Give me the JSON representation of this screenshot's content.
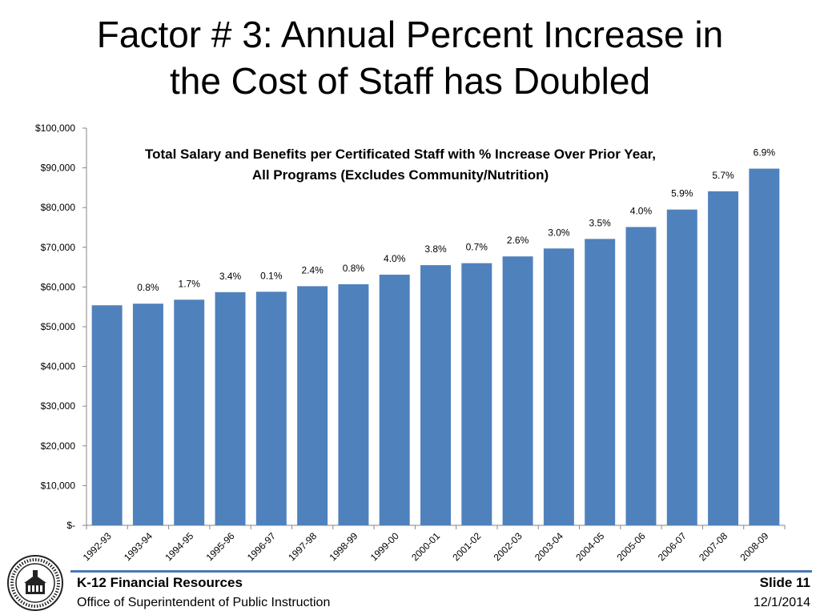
{
  "slide": {
    "title_line1": "Factor # 3:  Annual Percent Increase in",
    "title_line2": "the Cost of Staff has Doubled"
  },
  "footer": {
    "org_title": "K-12 Financial Resources",
    "org_name": "Office of Superintendent of Public Instruction",
    "slide_label": "Slide 11",
    "date": "12/1/2014",
    "seal_text": "SUPERINTENDENT OF PUBLIC INSTRUCTION · WASHINGTON"
  },
  "colors": {
    "bar": "#4f81bd",
    "axis": "#868686",
    "rule": "#4a78b8"
  },
  "chart_data": {
    "type": "bar",
    "title_line1": "Total Salary and Benefits per Certificated Staff with % Increase Over Prior Year,",
    "title_line2": "All Programs (Excludes Community/Nutrition)",
    "categories": [
      "1992-93",
      "1993-94",
      "1994-95",
      "1995-96",
      "1996-97",
      "1997-98",
      "1998-99",
      "1999-00",
      "2000-01",
      "2001-02",
      "2002-03",
      "2003-04",
      "2004-05",
      "2005-06",
      "2006-07",
      "2007-08",
      "2008-09"
    ],
    "values": [
      55400,
      55800,
      56800,
      58700,
      58800,
      60200,
      60700,
      63100,
      65500,
      66000,
      67700,
      69700,
      72100,
      75100,
      79500,
      84100,
      89800
    ],
    "data_labels": [
      "",
      "0.8%",
      "1.7%",
      "3.4%",
      "0.1%",
      "2.4%",
      "0.8%",
      "4.0%",
      "3.8%",
      "0.7%",
      "2.6%",
      "3.0%",
      "3.5%",
      "4.0%",
      "5.9%",
      "5.7%",
      "6.9%"
    ],
    "ylim": [
      0,
      100000
    ],
    "yticks": [
      0,
      10000,
      20000,
      30000,
      40000,
      50000,
      60000,
      70000,
      80000,
      90000,
      100000
    ],
    "ytick_labels": [
      "$-",
      "$10,000",
      "$20,000",
      "$30,000",
      "$40,000",
      "$50,000",
      "$60,000",
      "$70,000",
      "$80,000",
      "$90,000",
      "$100,000"
    ],
    "grid": false,
    "legend": "none"
  }
}
